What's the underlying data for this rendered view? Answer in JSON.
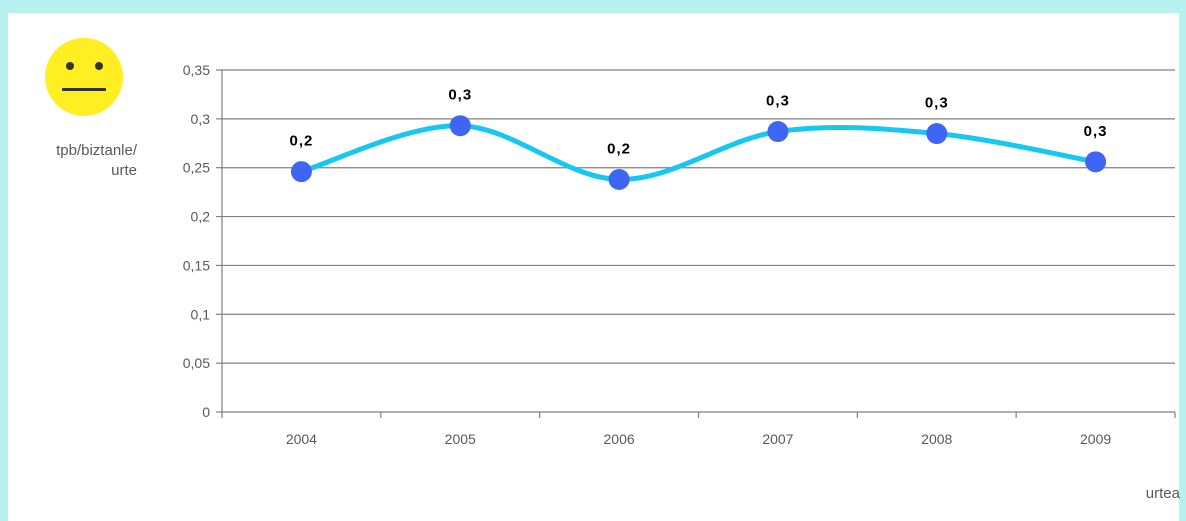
{
  "chart_data": {
    "type": "line",
    "title": "",
    "x": [
      "2004",
      "2005",
      "2006",
      "2007",
      "2008",
      "2009"
    ],
    "series": [
      {
        "values": [
          0.246,
          0.293,
          0.238,
          0.287,
          0.285,
          0.256
        ],
        "data_labels": [
          "0,2",
          "0,3",
          "0,2",
          "0,3",
          "0,3",
          "0,3"
        ],
        "line_color": "#16c7f2",
        "marker_color": "#3f65f5",
        "smooth": true
      }
    ],
    "ylabel_lines": [
      "tpb/biztanle/",
      "urte"
    ],
    "xlabel": "urtea",
    "ylim": [
      0,
      0.35
    ],
    "yticks": [
      0,
      0.05,
      0.1,
      0.15,
      0.2,
      0.25,
      0.3,
      0.35
    ],
    "ytick_labels": [
      "0",
      "0,05",
      "0,1",
      "0,15",
      "0,2",
      "0,25",
      "0,3",
      "0,35"
    ],
    "grid": true,
    "legend": "none"
  },
  "status_icon": {
    "name": "neutral-face-icon",
    "color": "#ffee22"
  },
  "colors": {
    "frame": "#b6f1ef",
    "grid": "#808080",
    "tick_text": "#595959"
  }
}
